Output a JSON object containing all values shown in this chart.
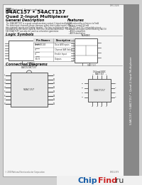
{
  "bg_outer": "#d0d0d0",
  "page_bg": "#f5f5f5",
  "sheet_bg": "#f0f0f0",
  "text_dark": "#111111",
  "text_mid": "#333333",
  "text_light": "#666666",
  "border_col": "#888888",
  "line_col": "#555555",
  "ic_fill": "#e8e8e8",
  "sidebar_bg": "#888888",
  "sidebar_text_col": "#ffffff",
  "chipfind_blue": "#1a5fa8",
  "chipfind_red": "#cc2222",
  "chipfind_dark": "#333333",
  "watermark_bg": "#f0f0f0",
  "logo_text": "National  Semiconductor",
  "title1": "54AC157 • 54ACT157",
  "title2": "Quad 2-Input Multiplexer",
  "sec_desc": "General Description",
  "sec_feat": "Features",
  "sec_logic": "Logic Symbols",
  "sec_conn": "Connection Diagrams",
  "part_num": "DM-1026",
  "copyright": "© 2000 National Semiconductor Corporation",
  "website": "DS011379",
  "sidebar_label": "54AC157 • 54ACT157 • Quad 2-Input Multiplexer"
}
